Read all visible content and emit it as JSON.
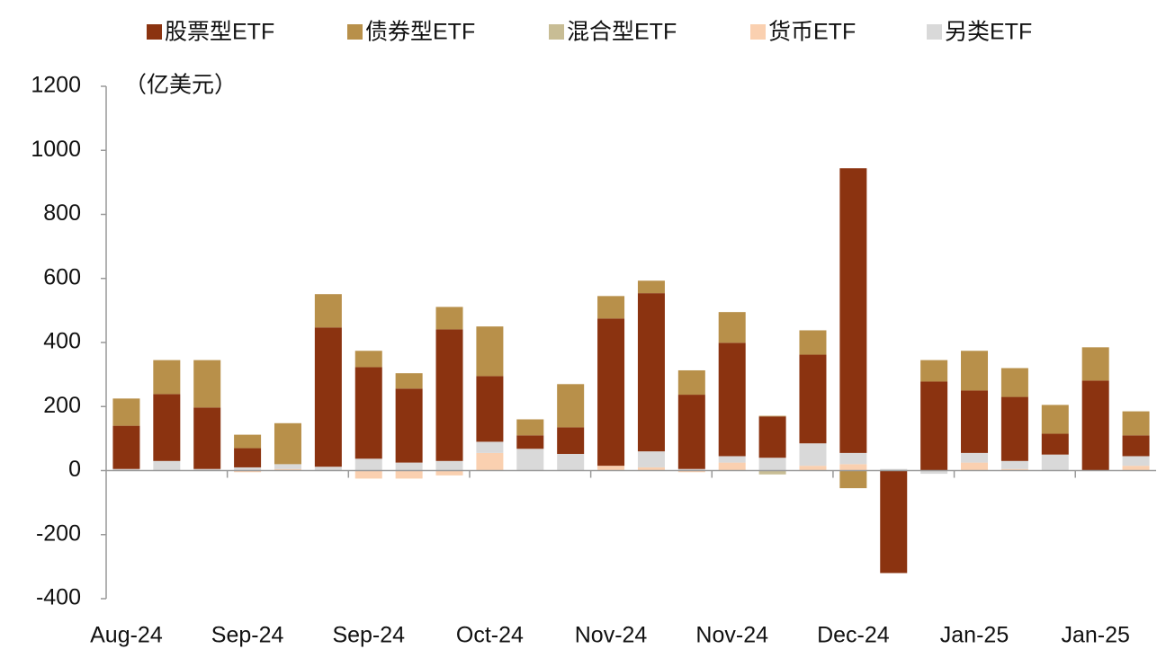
{
  "chart_data": {
    "type": "bar",
    "stacked": true,
    "y_label": "（亿美元）",
    "categories": [
      "Aug-24",
      null,
      null,
      "Sep-24",
      null,
      null,
      "Sep-24",
      null,
      null,
      "Oct-24",
      null,
      null,
      "Nov-24",
      null,
      null,
      "Nov-24",
      null,
      null,
      "Dec-24",
      null,
      null,
      "Jan-25",
      null,
      null,
      "Jan-25",
      null
    ],
    "series": [
      {
        "name": "股票型ETF",
        "color": "#8b3310",
        "values": [
          135,
          209,
          192,
          60,
          0,
          435,
          286,
          231,
          411,
          205,
          42,
          83,
          460,
          494,
          232,
          354,
          129,
          277,
          889,
          -320,
          278,
          195,
          200,
          65,
          281,
          65
        ]
      },
      {
        "name": "债券型ETF",
        "color": "#b8904a",
        "values": [
          85,
          106,
          148,
          42,
          128,
          104,
          51,
          48,
          70,
          155,
          50,
          135,
          70,
          39,
          76,
          96,
          2,
          76,
          -55,
          0,
          67,
          124,
          90,
          90,
          104,
          75
        ]
      },
      {
        "name": "混合型ETF",
        "color": "#c8bd95",
        "values": [
          0,
          0,
          0,
          0,
          0,
          0,
          0,
          0,
          0,
          0,
          0,
          0,
          0,
          0,
          0,
          0,
          -12,
          0,
          0,
          0,
          0,
          0,
          0,
          0,
          0,
          0
        ]
      },
      {
        "name": "货币ETF",
        "color": "#fad0b0",
        "values": [
          0,
          0,
          0,
          -5,
          5,
          0,
          -25,
          -25,
          -15,
          55,
          0,
          0,
          15,
          10,
          -5,
          25,
          0,
          15,
          20,
          0,
          0,
          25,
          5,
          0,
          0,
          15
        ]
      },
      {
        "name": "另类ETF",
        "color": "#d9d9d9",
        "values": [
          5,
          30,
          5,
          10,
          15,
          12,
          37,
          25,
          30,
          35,
          68,
          52,
          0,
          50,
          5,
          20,
          40,
          70,
          35,
          5,
          -10,
          30,
          25,
          50,
          0,
          30
        ]
      }
    ],
    "stack_order": [
      3,
      4,
      2,
      0,
      1
    ],
    "ylim": [
      -400,
      1200
    ],
    "yticks": [
      -400,
      -200,
      0,
      200,
      400,
      600,
      800,
      1000,
      1200
    ],
    "grid": false,
    "legend": "top"
  }
}
